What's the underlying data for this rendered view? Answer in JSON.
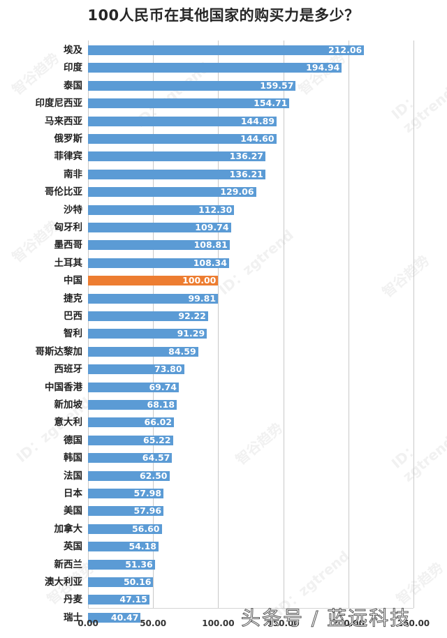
{
  "title": "100人民币在其他国家的购买力是多少？",
  "watermark": "头条号 / 蓝远科技",
  "faint_watermark": [
    "智谷趋势",
    "ID：zgtrend"
  ],
  "colors": {
    "bar": "#5B9BD5",
    "highlight": "#ED7D31",
    "gridline": "#c8c8c8"
  },
  "chart_data": {
    "type": "bar",
    "orientation": "horizontal",
    "title": "100人民币在其他国家的购买力是多少？",
    "xlabel": "",
    "ylabel": "",
    "xlim": [
      0,
      250
    ],
    "xticks": [
      "0.00",
      "50.00",
      "100.00",
      "150.00",
      "200.00",
      "250.00"
    ],
    "grid": true,
    "legend": null,
    "highlight_category": "中国",
    "categories": [
      "埃及",
      "印度",
      "泰国",
      "印度尼西亚",
      "马来西亚",
      "俄罗斯",
      "菲律宾",
      "南非",
      "哥伦比亚",
      "沙特",
      "匈牙利",
      "墨西哥",
      "土耳其",
      "中国",
      "捷克",
      "巴西",
      "智利",
      "哥斯达黎加",
      "西班牙",
      "中国香港",
      "新加坡",
      "意大利",
      "德国",
      "韩国",
      "法国",
      "日本",
      "美国",
      "加拿大",
      "英国",
      "新西兰",
      "澳大利亚",
      "丹麦",
      "瑞士"
    ],
    "values": [
      212.06,
      194.94,
      159.57,
      154.71,
      144.89,
      144.6,
      136.27,
      136.21,
      129.06,
      112.3,
      109.74,
      108.81,
      108.34,
      100.0,
      99.81,
      92.22,
      91.29,
      84.59,
      73.8,
      69.74,
      68.18,
      66.02,
      65.22,
      64.57,
      62.5,
      57.98,
      57.96,
      56.6,
      54.18,
      51.36,
      50.16,
      47.15,
      40.47
    ],
    "labels": [
      "212.06",
      "194.94",
      "159.57",
      "154.71",
      "144.89",
      "144.60",
      "136.27",
      "136.21",
      "129.06",
      "112.30",
      "109.74",
      "108.81",
      "108.34",
      "100.00",
      "99.81",
      "92.22",
      "91.29",
      "84.59",
      "73.80",
      "69.74",
      "68.18",
      "66.02",
      "65.22",
      "64.57",
      "62.50",
      "57.98",
      "57.96",
      "56.60",
      "54.18",
      "51.36",
      "50.16",
      "47.15",
      "40.47"
    ]
  }
}
